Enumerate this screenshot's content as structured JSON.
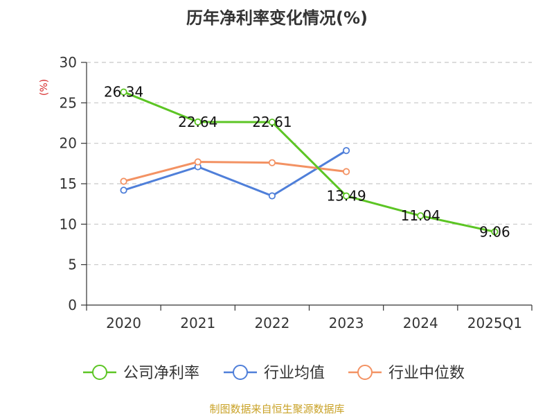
{
  "chart_data": {
    "type": "line",
    "title": "历年净利率变化情况(%)",
    "ylabel": "(%)",
    "categories": [
      "2020",
      "2021",
      "2022",
      "2023",
      "2024",
      "2025Q1"
    ],
    "ylim": [
      0,
      30
    ],
    "yticks": [
      "0",
      "5",
      "10",
      "15",
      "20",
      "25",
      "30"
    ],
    "grid": true,
    "legend_position": "bottom",
    "series": [
      {
        "name": "公司净利率",
        "color": "#5cc524",
        "values": [
          26.34,
          22.64,
          22.61,
          13.49,
          11.04,
          9.06
        ],
        "labels": [
          "26.34",
          "22.64",
          "22.61",
          "13.49",
          "11.04",
          "9.06"
        ]
      },
      {
        "name": "行业均值",
        "color": "#4f7fd9",
        "values": [
          14.2,
          17.1,
          13.5,
          19.1,
          null,
          null
        ]
      },
      {
        "name": "行业中位数",
        "color": "#f39263",
        "values": [
          15.3,
          17.7,
          17.6,
          16.5,
          null,
          null
        ]
      }
    ],
    "source": "制图数据来自恒生聚源数据库"
  }
}
